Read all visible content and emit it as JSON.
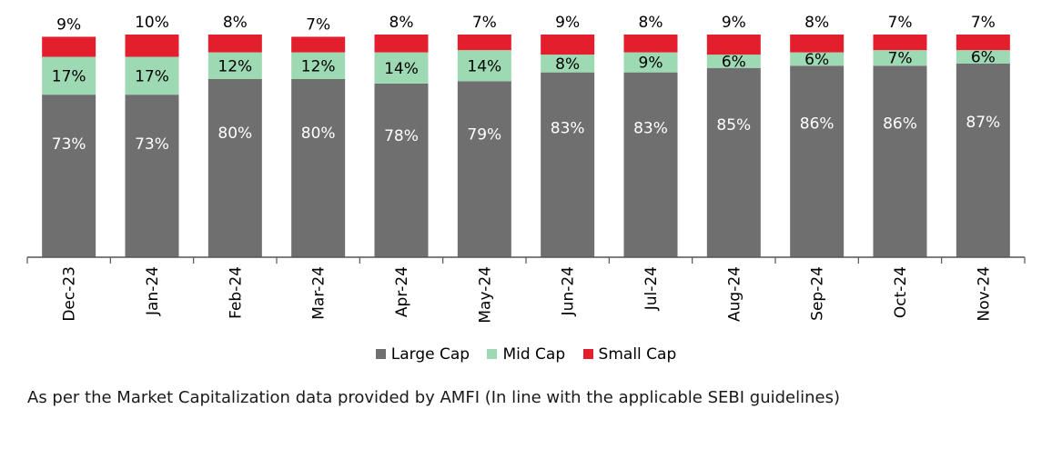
{
  "chart_data": {
    "type": "bar",
    "stacked": true,
    "categories": [
      "Dec-23",
      "Jan-24",
      "Feb-24",
      "Mar-24",
      "Apr-24",
      "May-24",
      "Jun-24",
      "Jul-24",
      "Aug-24",
      "Sep-24",
      "Oct-24",
      "Nov-24"
    ],
    "series": [
      {
        "name": "Large Cap",
        "color": "#6f6f6f",
        "label_color": "#ffffff",
        "values": [
          73,
          73,
          80,
          80,
          78,
          79,
          83,
          83,
          85,
          86,
          86,
          87
        ],
        "labels": [
          "73%",
          "73%",
          "80%",
          "80%",
          "78%",
          "79%",
          "83%",
          "83%",
          "85%",
          "86%",
          "86%",
          "87%"
        ]
      },
      {
        "name": "Mid Cap",
        "color": "#9dd9b3",
        "label_color": "#000000",
        "values": [
          17,
          17,
          12,
          12,
          14,
          14,
          8,
          9,
          6,
          6,
          7,
          6
        ],
        "labels": [
          "17%",
          "17%",
          "12%",
          "12%",
          "14%",
          "14%",
          "8%",
          "9%",
          "6%",
          "6%",
          "7%",
          "6%"
        ]
      },
      {
        "name": "Small Cap",
        "color": "#e31e2d",
        "label_color": "#000000",
        "values": [
          9,
          10,
          8,
          7,
          8,
          7,
          9,
          8,
          9,
          8,
          7,
          7
        ],
        "labels": [
          "9%",
          "10%",
          "8%",
          "7%",
          "8%",
          "7%",
          "9%",
          "8%",
          "9%",
          "8%",
          "7%",
          "7%"
        ]
      }
    ],
    "legend_position": "bottom",
    "grid": false
  },
  "footnote": "As per the Market Capitalization data provided by AMFI (In line with the applicable SEBI guidelines)"
}
